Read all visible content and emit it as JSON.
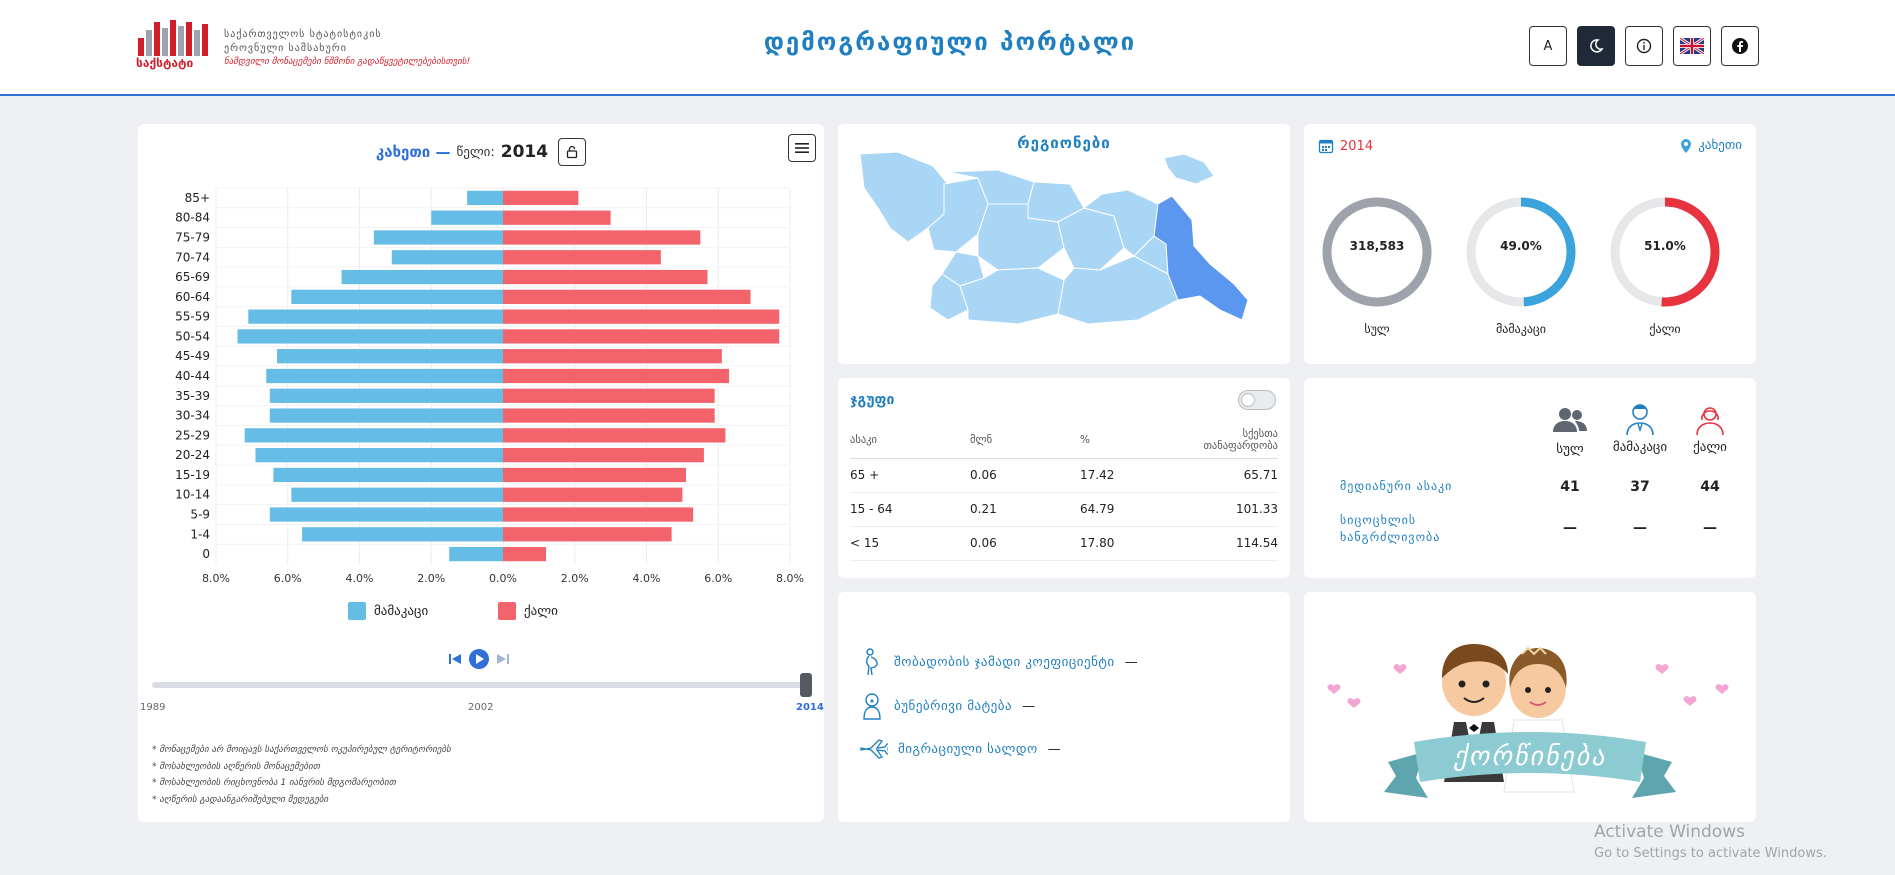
{
  "header": {
    "logo_line1": "საქართველოს სტატისტიკის",
    "logo_line2": "ეროვნული სამსახური",
    "logo_slogan": "ნამდვილი მონაცემები ნშმონი გადაწყვეტილებებისთვის!",
    "logo_name": "საქსტატი",
    "portal_title": "დემოგრაფიული პორტალი",
    "font_button_label": "A",
    "icons": [
      "moon-icon",
      "info-icon",
      "uk-flag-icon",
      "facebook-icon"
    ]
  },
  "pyramid": {
    "region": "კახეთი —",
    "year_label": "წელი:",
    "year": "2014",
    "legend_male": "მამაკაცი",
    "legend_female": "ქალი",
    "slider_start": "1989",
    "slider_mid": "2002",
    "slider_end": "2014",
    "slider_value": 1.0,
    "notes": [
      "* მონაცემები არ მოიცავს საქართველოს ოკუპირებულ ტერიტორიებს",
      "* მოსახლეობის აღწერის მონაცემებით",
      "* მოსახლეობის რიცხოვნობა 1 იანვრის მდგომარეობით",
      "* აღწერის გადაანგარიშებული შედეგები"
    ]
  },
  "chart_data": {
    "type": "bar",
    "orientation": "horizontal",
    "categories": [
      "85+",
      "80-84",
      "75-79",
      "70-74",
      "65-69",
      "60-64",
      "55-59",
      "50-54",
      "45-49",
      "40-44",
      "35-39",
      "30-34",
      "25-29",
      "20-24",
      "15-19",
      "10-14",
      "5-9",
      "1-4",
      "0"
    ],
    "series": [
      {
        "name": "მამაკაცი",
        "color": "#65bde6",
        "values": [
          1.0,
          2.0,
          3.6,
          3.1,
          4.5,
          5.9,
          7.1,
          7.4,
          6.3,
          6.6,
          6.5,
          6.5,
          7.2,
          6.9,
          6.4,
          5.9,
          6.5,
          5.6,
          1.5
        ]
      },
      {
        "name": "ქალი",
        "color": "#f2636b",
        "values": [
          2.1,
          3.0,
          5.5,
          4.4,
          5.7,
          6.9,
          7.7,
          7.7,
          6.1,
          6.3,
          5.9,
          5.9,
          6.2,
          5.6,
          5.1,
          5.0,
          5.3,
          4.7,
          1.2
        ]
      }
    ],
    "xlim": [
      -8,
      8
    ],
    "xticks": [
      "8.0%",
      "6.0%",
      "4.0%",
      "2.0%",
      "0.0%",
      "2.0%",
      "4.0%",
      "6.0%",
      "8.0%"
    ],
    "grid": true,
    "legend": "bottom"
  },
  "regions": {
    "title": "რეგიონები"
  },
  "stats": {
    "year": "2014",
    "region": "კახეთი",
    "rings": [
      {
        "label": "სულ",
        "value": "318,583",
        "fraction": 1.0,
        "color": "#9ea3ab"
      },
      {
        "label": "მამაკაცი",
        "value": "49.0%",
        "fraction": 0.49,
        "color": "#3ba4dd"
      },
      {
        "label": "ქალი",
        "value": "51.0%",
        "fraction": 0.51,
        "color": "#e8323e"
      }
    ]
  },
  "groups": {
    "title": "ჯგუფი",
    "headers": [
      "ასაკი",
      "მლნ",
      "%",
      "სქესთა თანაფარდობა"
    ],
    "rows": [
      {
        "age": "65 +",
        "mln": "0.06",
        "pct": "17.42",
        "ratio": "65.71"
      },
      {
        "age": "15 - 64",
        "mln": "0.21",
        "pct": "64.79",
        "ratio": "101.33"
      },
      {
        "age": "< 15",
        "mln": "0.06",
        "pct": "17.80",
        "ratio": "114.54"
      }
    ]
  },
  "age_stats": {
    "col_total": "სულ",
    "col_male": "მამაკაცი",
    "col_female": "ქალი",
    "median_label": "მედიანური ასაკი",
    "median_total": "41",
    "median_male": "37",
    "median_female": "44",
    "life_label_1": "სიცოცხლის",
    "life_label_2": "ხანგრძლივობა",
    "life_total": "—",
    "life_male": "—",
    "life_female": "—"
  },
  "indicators": {
    "fertility": "შობადობის ჯამადი კოეფიციენტი",
    "fertility_val": "—",
    "natural": "ბუნებრივი მატება",
    "natural_val": "—",
    "migration": "მიგრაციული სალდო",
    "migration_val": "—"
  },
  "marriage": {
    "banner": "ქორწინება"
  },
  "watermark": {
    "line1": "Activate Windows",
    "line2": "Go to Settings to activate Windows."
  }
}
